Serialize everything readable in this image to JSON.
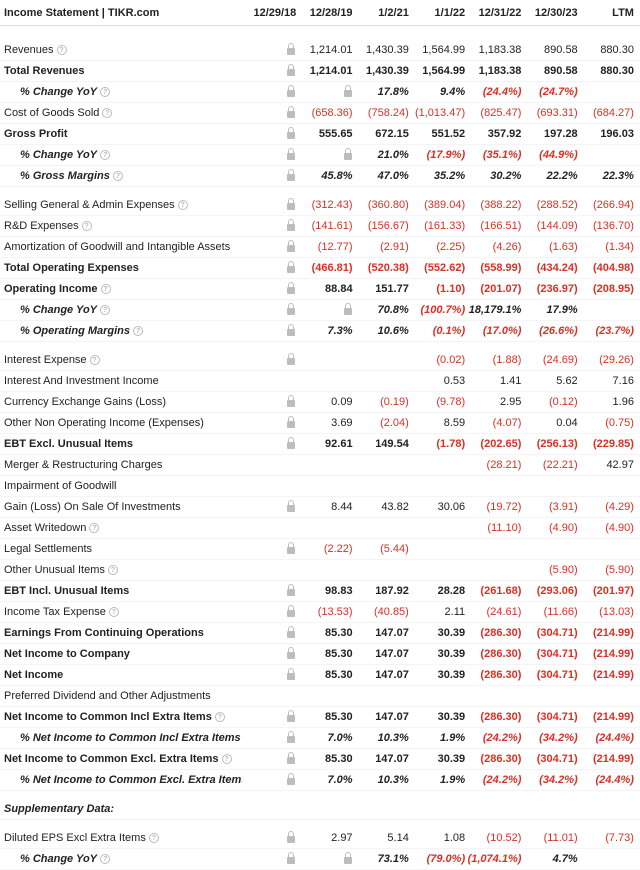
{
  "header": {
    "title": "Income Statement | TIKR.com",
    "columns": [
      "12/29/18",
      "12/28/19",
      "1/2/21",
      "1/1/22",
      "12/31/22",
      "12/30/23",
      "LTM"
    ]
  },
  "rows": [
    {
      "label": "Revenues",
      "info": true,
      "lockCol0": true,
      "vals": [
        "1,214.01",
        "1,430.39",
        "1,564.99",
        "1,183.38",
        "890.58",
        "880.30"
      ],
      "neg": [
        false,
        false,
        false,
        false,
        false,
        false
      ]
    },
    {
      "label": "Total Revenues",
      "bold": true,
      "lockCol0": true,
      "vals": [
        "1,214.01",
        "1,430.39",
        "1,564.99",
        "1,183.38",
        "890.58",
        "880.30"
      ],
      "neg": [
        false,
        false,
        false,
        false,
        false,
        false
      ]
    },
    {
      "label": "% Change YoY",
      "italic": true,
      "bold": true,
      "indent": true,
      "info": true,
      "lockCol0": true,
      "vals": [
        " ",
        "17.8%",
        "9.4%",
        "(24.4%)",
        "(24.7%)",
        ""
      ],
      "neg": [
        false,
        false,
        false,
        true,
        true,
        false
      ],
      "col1Lock": true
    },
    {
      "label": "Cost of Goods Sold",
      "info": true,
      "lockCol0": true,
      "vals": [
        "(658.36)",
        "(758.24)",
        "(1,013.47)",
        "(825.47)",
        "(693.31)",
        "(684.27)"
      ],
      "neg": [
        true,
        true,
        true,
        true,
        true,
        true
      ]
    },
    {
      "label": "Gross Profit",
      "bold": true,
      "lockCol0": true,
      "vals": [
        "555.65",
        "672.15",
        "551.52",
        "357.92",
        "197.28",
        "196.03"
      ],
      "neg": [
        false,
        false,
        false,
        false,
        false,
        false
      ]
    },
    {
      "label": "% Change YoY",
      "italic": true,
      "bold": true,
      "indent": true,
      "info": true,
      "lockCol0": true,
      "vals": [
        " ",
        "21.0%",
        "(17.9%)",
        "(35.1%)",
        "(44.9%)",
        ""
      ],
      "neg": [
        false,
        false,
        true,
        true,
        true,
        false
      ],
      "col1Lock": true
    },
    {
      "label": "% Gross Margins",
      "italic": true,
      "bold": true,
      "indent": true,
      "info": true,
      "lockCol0": true,
      "vals": [
        "45.8%",
        "47.0%",
        "35.2%",
        "30.2%",
        "22.2%",
        "22.3%"
      ],
      "neg": [
        false,
        false,
        false,
        false,
        false,
        false
      ]
    },
    {
      "gap": true
    },
    {
      "label": "Selling General & Admin Expenses",
      "info": true,
      "lockCol0": true,
      "vals": [
        "(312.43)",
        "(360.80)",
        "(389.04)",
        "(388.22)",
        "(288.52)",
        "(266.94)"
      ],
      "neg": [
        true,
        true,
        true,
        true,
        true,
        true
      ]
    },
    {
      "label": "R&D Expenses",
      "info": true,
      "lockCol0": true,
      "vals": [
        "(141.61)",
        "(156.67)",
        "(161.33)",
        "(166.51)",
        "(144.09)",
        "(136.70)"
      ],
      "neg": [
        true,
        true,
        true,
        true,
        true,
        true
      ]
    },
    {
      "label": "Amortization of Goodwill and Intangible Assets",
      "lockCol0": true,
      "vals": [
        "(12.77)",
        "(2.91)",
        "(2.25)",
        "(4.26)",
        "(1.63)",
        "(1.34)"
      ],
      "neg": [
        true,
        true,
        true,
        true,
        true,
        true
      ]
    },
    {
      "label": "Total Operating Expenses",
      "bold": true,
      "lockCol0": true,
      "vals": [
        "(466.81)",
        "(520.38)",
        "(552.62)",
        "(558.99)",
        "(434.24)",
        "(404.98)"
      ],
      "neg": [
        true,
        true,
        true,
        true,
        true,
        true
      ]
    },
    {
      "label": "Operating Income",
      "bold": true,
      "info": true,
      "lockCol0": true,
      "vals": [
        "88.84",
        "151.77",
        "(1.10)",
        "(201.07)",
        "(236.97)",
        "(208.95)"
      ],
      "neg": [
        false,
        false,
        true,
        true,
        true,
        true
      ]
    },
    {
      "label": "% Change YoY",
      "italic": true,
      "bold": true,
      "indent": true,
      "info": true,
      "lockCol0": true,
      "vals": [
        " ",
        "70.8%",
        "(100.7%)",
        "18,179.1%",
        "17.9%",
        ""
      ],
      "neg": [
        false,
        false,
        true,
        false,
        false,
        false
      ],
      "col1Lock": true
    },
    {
      "label": "% Operating Margins",
      "italic": true,
      "bold": true,
      "indent": true,
      "info": true,
      "lockCol0": true,
      "vals": [
        "7.3%",
        "10.6%",
        "(0.1%)",
        "(17.0%)",
        "(26.6%)",
        "(23.7%)"
      ],
      "neg": [
        false,
        false,
        true,
        true,
        true,
        true
      ]
    },
    {
      "gap": true
    },
    {
      "label": "Interest Expense",
      "info": true,
      "lockCol0": true,
      "vals": [
        "",
        "",
        "(0.02)",
        "(1.88)",
        "(24.69)",
        "(29.26)"
      ],
      "neg": [
        false,
        false,
        true,
        true,
        true,
        true
      ]
    },
    {
      "label": "Interest And Investment Income",
      "vals": [
        "",
        "",
        "",
        "0.53",
        "1.41",
        "5.62",
        "7.16"
      ],
      "raw7": true
    },
    {
      "label": "Currency Exchange Gains (Loss)",
      "lockCol0": true,
      "vals": [
        "0.09",
        "(0.19)",
        "(9.78)",
        "2.95",
        "(0.12)",
        "1.96"
      ],
      "neg": [
        false,
        true,
        true,
        false,
        true,
        false
      ]
    },
    {
      "label": "Other Non Operating Income (Expenses)",
      "lockCol0": true,
      "vals": [
        "3.69",
        "(2.04)",
        "8.59",
        "(4.07)",
        "0.04",
        "(0.75)"
      ],
      "neg": [
        false,
        true,
        false,
        true,
        false,
        true
      ]
    },
    {
      "label": "EBT Excl. Unusual Items",
      "bold": true,
      "lockCol0": true,
      "vals": [
        "92.61",
        "149.54",
        "(1.78)",
        "(202.65)",
        "(256.13)",
        "(229.85)"
      ],
      "neg": [
        false,
        false,
        true,
        true,
        true,
        true
      ]
    },
    {
      "label": "Merger & Restructuring Charges",
      "vals": [
        "",
        "",
        "",
        "",
        "(28.21)",
        "(22.21)",
        "42.97"
      ],
      "raw7": true,
      "neg7": [
        false,
        false,
        false,
        false,
        true,
        true,
        false
      ]
    },
    {
      "label": "Impairment of Goodwill",
      "vals": [
        "",
        "",
        "",
        "",
        "",
        "",
        ""
      ],
      "raw7": true
    },
    {
      "label": "Gain (Loss) On Sale Of Investments",
      "lockCol0": true,
      "vals": [
        "8.44",
        "43.82",
        "30.06",
        "(19.72)",
        "(3.91)",
        "(4.29)"
      ],
      "neg": [
        false,
        false,
        false,
        true,
        true,
        true
      ]
    },
    {
      "label": "Asset Writedown",
      "info": true,
      "vals": [
        "",
        "",
        "",
        "",
        "(11.10)",
        "(4.90)",
        "(4.90)"
      ],
      "raw7": true,
      "neg7": [
        false,
        false,
        false,
        false,
        true,
        true,
        true
      ]
    },
    {
      "label": "Legal Settlements",
      "lockCol0": true,
      "vals": [
        "(2.22)",
        "(5.44)",
        "",
        "",
        "",
        ""
      ],
      "neg": [
        true,
        true,
        false,
        false,
        false,
        false
      ]
    },
    {
      "label": "Other Unusual Items",
      "info": true,
      "vals": [
        "",
        "",
        "",
        "",
        "",
        "(5.90)",
        "(5.90)"
      ],
      "raw7": true,
      "neg7": [
        false,
        false,
        false,
        false,
        false,
        true,
        true
      ]
    },
    {
      "label": "EBT Incl. Unusual Items",
      "bold": true,
      "lockCol0": true,
      "vals": [
        "98.83",
        "187.92",
        "28.28",
        "(261.68)",
        "(293.06)",
        "(201.97)"
      ],
      "neg": [
        false,
        false,
        false,
        true,
        true,
        true
      ]
    },
    {
      "label": "Income Tax Expense",
      "info": true,
      "lockCol0": true,
      "vals": [
        "(13.53)",
        "(40.85)",
        "2.11",
        "(24.61)",
        "(11.66)",
        "(13.03)"
      ],
      "neg": [
        true,
        true,
        false,
        true,
        true,
        true
      ]
    },
    {
      "label": "Earnings From Continuing Operations",
      "bold": true,
      "lockCol0": true,
      "vals": [
        "85.30",
        "147.07",
        "30.39",
        "(286.30)",
        "(304.71)",
        "(214.99)"
      ],
      "neg": [
        false,
        false,
        false,
        true,
        true,
        true
      ]
    },
    {
      "label": "Net Income to Company",
      "bold": true,
      "lockCol0": true,
      "vals": [
        "85.30",
        "147.07",
        "30.39",
        "(286.30)",
        "(304.71)",
        "(214.99)"
      ],
      "neg": [
        false,
        false,
        false,
        true,
        true,
        true
      ]
    },
    {
      "label": "Net Income",
      "bold": true,
      "lockCol0": true,
      "vals": [
        "85.30",
        "147.07",
        "30.39",
        "(286.30)",
        "(304.71)",
        "(214.99)"
      ],
      "neg": [
        false,
        false,
        false,
        true,
        true,
        true
      ]
    },
    {
      "label": "Preferred Dividend and Other Adjustments",
      "vals": [
        "",
        "",
        "",
        "",
        "",
        "",
        ""
      ],
      "raw7": true
    },
    {
      "label": "Net Income to Common Incl Extra Items",
      "bold": true,
      "info": true,
      "lockCol0": true,
      "vals": [
        "85.30",
        "147.07",
        "30.39",
        "(286.30)",
        "(304.71)",
        "(214.99)"
      ],
      "neg": [
        false,
        false,
        false,
        true,
        true,
        true
      ]
    },
    {
      "label": "% Net Income to Common Incl Extra Items Margins",
      "italic": true,
      "bold": true,
      "indent": true,
      "info": true,
      "lockCol0": true,
      "vals": [
        "7.0%",
        "10.3%",
        "1.9%",
        "(24.2%)",
        "(34.2%)",
        "(24.4%)"
      ],
      "neg": [
        false,
        false,
        false,
        true,
        true,
        true
      ]
    },
    {
      "label": "Net Income to Common Excl. Extra Items",
      "bold": true,
      "info": true,
      "lockCol0": true,
      "vals": [
        "85.30",
        "147.07",
        "30.39",
        "(286.30)",
        "(304.71)",
        "(214.99)"
      ],
      "neg": [
        false,
        false,
        false,
        true,
        true,
        true
      ]
    },
    {
      "label": "% Net Income to Common Excl. Extra Items Margins",
      "italic": true,
      "bold": true,
      "indent": true,
      "info": true,
      "lockCol0": true,
      "vals": [
        "7.0%",
        "10.3%",
        "1.9%",
        "(24.2%)",
        "(34.2%)",
        "(24.4%)"
      ],
      "neg": [
        false,
        false,
        false,
        true,
        true,
        true
      ]
    },
    {
      "gap": true
    },
    {
      "label": "Supplementary Data:",
      "italic": true,
      "bold": true,
      "vals": [
        "",
        "",
        "",
        "",
        "",
        "",
        ""
      ],
      "raw7": true
    },
    {
      "gap": true
    },
    {
      "label": "Diluted EPS Excl Extra Items",
      "info": true,
      "lockCol0": true,
      "vals": [
        "2.97",
        "5.14",
        "1.08",
        "(10.52)",
        "(11.01)",
        "(7.73)"
      ],
      "neg": [
        false,
        false,
        false,
        true,
        true,
        true
      ]
    },
    {
      "label": "% Change YoY",
      "italic": true,
      "bold": true,
      "indent": true,
      "info": true,
      "lockCol0": true,
      "vals": [
        " ",
        "73.1%",
        "(79.0%)",
        "(1,074.1%)",
        "4.7%",
        ""
      ],
      "neg": [
        false,
        false,
        true,
        true,
        false,
        false
      ],
      "col1Lock": true
    }
  ]
}
